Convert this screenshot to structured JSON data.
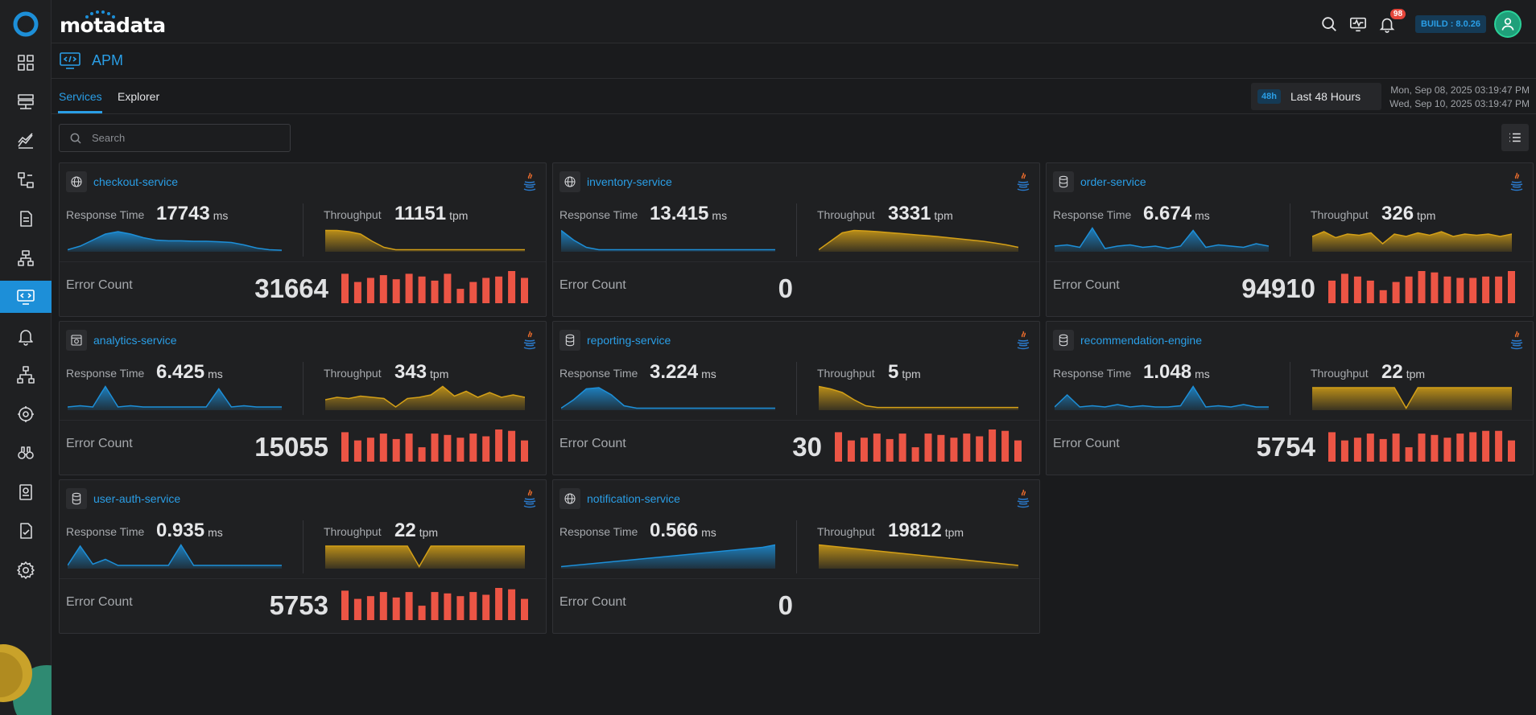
{
  "app": {
    "brand": "motadata",
    "build": "BUILD : 8.0.26",
    "notifications": "98"
  },
  "nav": {
    "items": [
      "dashboard",
      "monitors",
      "metrics",
      "topology",
      "logs",
      "flows",
      "apm",
      "alerts",
      "network",
      "integrations",
      "explorer",
      "reports",
      "audit",
      "settings"
    ],
    "active": "apm"
  },
  "page": {
    "title": "APM",
    "tabs": [
      "Services",
      "Explorer"
    ],
    "active_tab": "Services",
    "time_badge": "48h",
    "time_label": "Last 48 Hours",
    "date_from": "Mon, Sep 08, 2025 03:19:47 PM",
    "date_to": "Wed, Sep 10, 2025 03:19:47 PM",
    "search_placeholder": "Search"
  },
  "labels": {
    "response_time": "Response Time",
    "throughput": "Throughput",
    "error_count": "Error Count",
    "ms": "ms",
    "tpm": "tpm"
  },
  "colors": {
    "accent": "#2a9ee6",
    "response": "#1d8fd8",
    "throughput": "#d4a017",
    "error": "#ec5545"
  },
  "services": [
    {
      "name": "checkout-service",
      "icon": "globe-icon",
      "response": "17743",
      "throughput": "11151",
      "errors": "31664",
      "rt_spark": [
        0.05,
        0.2,
        0.45,
        0.7,
        0.8,
        0.7,
        0.55,
        0.45,
        0.42,
        0.42,
        0.4,
        0.4,
        0.38,
        0.35,
        0.25,
        0.12,
        0.05,
        0.03
      ],
      "tp_spark": [
        0.85,
        0.85,
        0.8,
        0.7,
        0.4,
        0.15,
        0.05,
        0.05,
        0.05,
        0.05,
        0.05,
        0.05,
        0.05,
        0.05,
        0.05,
        0.05,
        0.05,
        0.05
      ],
      "err_bars": [
        0.9,
        0.6,
        0.75,
        0.85,
        0.7,
        0.9,
        0.8,
        0.65,
        0.9,
        0.35,
        0.6,
        0.75,
        0.8,
        1.0,
        0.75
      ]
    },
    {
      "name": "inventory-service",
      "icon": "globe-icon",
      "response": "13.415",
      "throughput": "3331",
      "errors": "0",
      "rt_spark": [
        0.85,
        0.45,
        0.15,
        0.05,
        0.05,
        0.05,
        0.05,
        0.05,
        0.05,
        0.05,
        0.05,
        0.05,
        0.05,
        0.05,
        0.05,
        0.05,
        0.05,
        0.05
      ],
      "tp_spark": [
        0.05,
        0.4,
        0.75,
        0.85,
        0.83,
        0.8,
        0.76,
        0.72,
        0.68,
        0.64,
        0.6,
        0.55,
        0.5,
        0.45,
        0.4,
        0.33,
        0.25,
        0.15
      ],
      "err_bars": []
    },
    {
      "name": "order-service",
      "icon": "database-icon",
      "response": "6.674",
      "throughput": "326",
      "errors": "94910",
      "rt_spark": [
        0.2,
        0.25,
        0.15,
        0.95,
        0.1,
        0.2,
        0.25,
        0.15,
        0.2,
        0.1,
        0.2,
        0.85,
        0.15,
        0.25,
        0.2,
        0.15,
        0.3,
        0.2
      ],
      "tp_spark": [
        0.6,
        0.8,
        0.55,
        0.7,
        0.65,
        0.75,
        0.3,
        0.7,
        0.6,
        0.75,
        0.65,
        0.8,
        0.6,
        0.7,
        0.65,
        0.7,
        0.6,
        0.7
      ],
      "err_bars": [
        0.65,
        0.9,
        0.8,
        0.65,
        0.3,
        0.6,
        0.8,
        1.0,
        0.95,
        0.8,
        0.75,
        0.75,
        0.8,
        0.8,
        1.0
      ]
    },
    {
      "name": "analytics-service",
      "icon": "shield-icon",
      "response": "6.425",
      "throughput": "343",
      "errors": "15055",
      "rt_spark": [
        0.1,
        0.15,
        0.1,
        0.95,
        0.1,
        0.15,
        0.1,
        0.1,
        0.1,
        0.1,
        0.1,
        0.1,
        0.85,
        0.1,
        0.15,
        0.1,
        0.1,
        0.1
      ],
      "tp_spark": [
        0.4,
        0.5,
        0.45,
        0.55,
        0.5,
        0.45,
        0.1,
        0.45,
        0.5,
        0.6,
        0.95,
        0.55,
        0.75,
        0.5,
        0.7,
        0.5,
        0.6,
        0.5
      ],
      "err_bars": [
        0.9,
        0.6,
        0.7,
        0.85,
        0.65,
        0.85,
        0.35,
        0.85,
        0.8,
        0.7,
        0.85,
        0.75,
        1.0,
        0.95,
        0.6
      ]
    },
    {
      "name": "reporting-service",
      "icon": "database-icon",
      "response": "3.224",
      "throughput": "5",
      "errors": "30",
      "rt_spark": [
        0.05,
        0.4,
        0.85,
        0.9,
        0.6,
        0.15,
        0.05,
        0.05,
        0.05,
        0.05,
        0.05,
        0.05,
        0.05,
        0.05,
        0.05,
        0.05,
        0.05,
        0.05
      ],
      "tp_spark": [
        0.95,
        0.85,
        0.7,
        0.4,
        0.15,
        0.08,
        0.08,
        0.08,
        0.08,
        0.08,
        0.08,
        0.08,
        0.08,
        0.08,
        0.08,
        0.08,
        0.08,
        0.08
      ],
      "err_bars": [
        0.9,
        0.6,
        0.7,
        0.85,
        0.65,
        0.85,
        0.35,
        0.85,
        0.8,
        0.7,
        0.85,
        0.75,
        1.0,
        0.95,
        0.6
      ]
    },
    {
      "name": "recommendation-engine",
      "icon": "database-icon",
      "response": "1.048",
      "throughput": "22",
      "errors": "5754",
      "rt_spark": [
        0.1,
        0.6,
        0.1,
        0.15,
        0.1,
        0.2,
        0.1,
        0.15,
        0.1,
        0.1,
        0.15,
        0.95,
        0.1,
        0.15,
        0.1,
        0.2,
        0.1,
        0.1
      ],
      "tp_spark": [
        0.9,
        0.9,
        0.9,
        0.9,
        0.9,
        0.9,
        0.9,
        0.9,
        0.05,
        0.9,
        0.9,
        0.9,
        0.9,
        0.9,
        0.9,
        0.9,
        0.9,
        0.9
      ],
      "err_bars": [
        0.9,
        0.6,
        0.7,
        0.85,
        0.65,
        0.85,
        0.35,
        0.85,
        0.8,
        0.7,
        0.85,
        0.9,
        0.95,
        0.95,
        0.6
      ]
    },
    {
      "name": "user-auth-service",
      "icon": "database-icon",
      "response": "0.935",
      "throughput": "22",
      "errors": "5753",
      "rt_spark": [
        0.1,
        0.9,
        0.15,
        0.35,
        0.1,
        0.1,
        0.1,
        0.1,
        0.1,
        0.95,
        0.1,
        0.1,
        0.1,
        0.1,
        0.1,
        0.1,
        0.1,
        0.1
      ],
      "tp_spark": [
        0.9,
        0.9,
        0.9,
        0.9,
        0.9,
        0.9,
        0.9,
        0.9,
        0.05,
        0.9,
        0.9,
        0.9,
        0.9,
        0.9,
        0.9,
        0.9,
        0.9,
        0.9
      ],
      "err_bars": [
        0.9,
        0.6,
        0.7,
        0.85,
        0.65,
        0.85,
        0.35,
        0.85,
        0.8,
        0.7,
        0.85,
        0.75,
        1.0,
        0.95,
        0.6
      ]
    },
    {
      "name": "notification-service",
      "icon": "globe-icon",
      "response": "0.566",
      "throughput": "19812",
      "errors": "0",
      "rt_spark": [
        0.05,
        0.1,
        0.15,
        0.2,
        0.25,
        0.3,
        0.35,
        0.4,
        0.45,
        0.5,
        0.55,
        0.6,
        0.65,
        0.7,
        0.75,
        0.8,
        0.85,
        0.95
      ],
      "tp_spark": [
        0.95,
        0.9,
        0.85,
        0.8,
        0.75,
        0.7,
        0.65,
        0.6,
        0.55,
        0.5,
        0.45,
        0.4,
        0.35,
        0.3,
        0.25,
        0.2,
        0.15,
        0.1
      ],
      "err_bars": []
    }
  ]
}
